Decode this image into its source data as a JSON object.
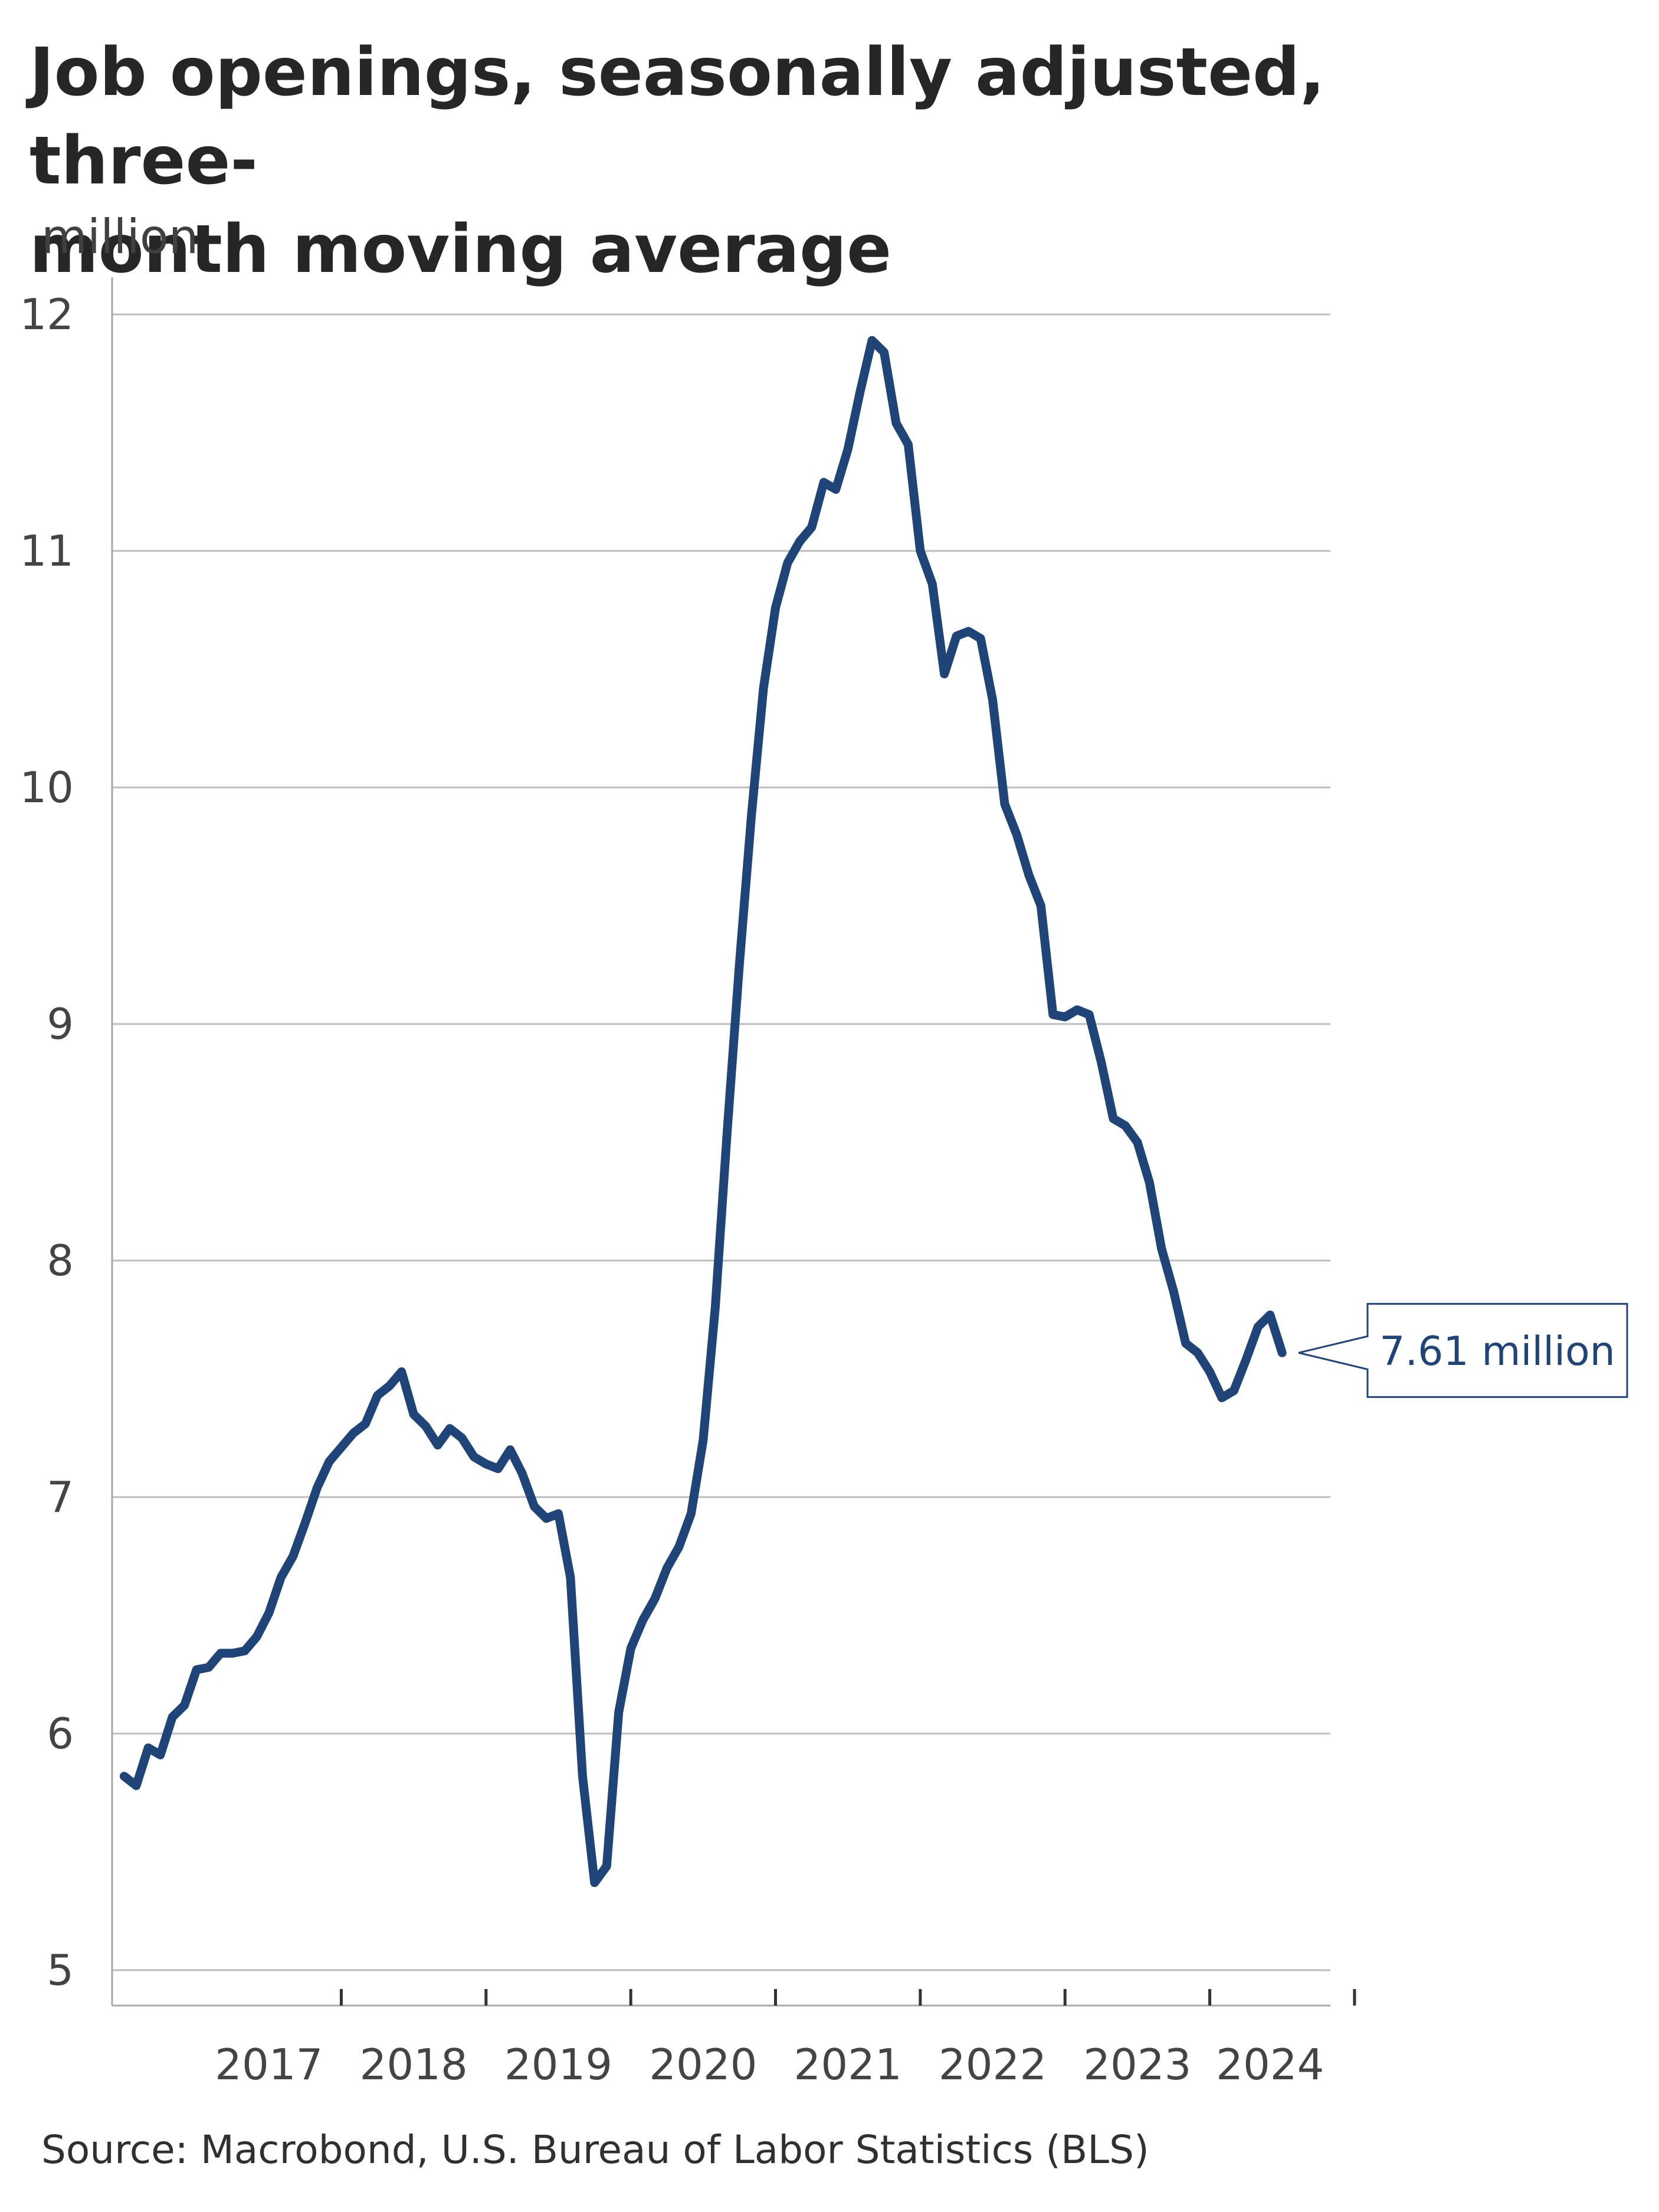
{
  "chart_data": {
    "type": "line",
    "title_lines": [
      "Job openings, seasonally adjusted, three-",
      "month moving average"
    ],
    "unit_label": "million",
    "source": "Source: Macrobond, U.S. Bureau of Labor Statistics (BLS)",
    "ylim": [
      5,
      12
    ],
    "yticks": [
      5,
      6,
      7,
      8,
      9,
      10,
      11,
      12
    ],
    "xlim": [
      "2016-06",
      "2024-11"
    ],
    "year_labels": [
      "2017",
      "2018",
      "2019",
      "2020",
      "2021",
      "2022",
      "2023",
      "2024"
    ],
    "grid": true,
    "series": [
      {
        "color": "#1f4478",
        "values": [
          [
            "2016-07",
            5.82
          ],
          [
            "2016-08",
            5.78
          ],
          [
            "2016-09",
            5.94
          ],
          [
            "2016-10",
            5.91
          ],
          [
            "2016-11",
            6.07
          ],
          [
            "2016-12",
            6.12
          ],
          [
            "2017-01",
            6.27
          ],
          [
            "2017-02",
            6.28
          ],
          [
            "2017-03",
            6.34
          ],
          [
            "2017-04",
            6.34
          ],
          [
            "2017-05",
            6.35
          ],
          [
            "2017-06",
            6.41
          ],
          [
            "2017-07",
            6.51
          ],
          [
            "2017-08",
            6.66
          ],
          [
            "2017-09",
            6.75
          ],
          [
            "2017-10",
            6.89
          ],
          [
            "2017-11",
            7.04
          ],
          [
            "2017-12",
            7.15
          ],
          [
            "2018-01",
            7.21
          ],
          [
            "2018-02",
            7.27
          ],
          [
            "2018-03",
            7.31
          ],
          [
            "2018-04",
            7.43
          ],
          [
            "2018-05",
            7.47
          ],
          [
            "2018-06",
            7.53
          ],
          [
            "2018-07",
            7.35
          ],
          [
            "2018-08",
            7.3
          ],
          [
            "2018-09",
            7.22
          ],
          [
            "2018-10",
            7.29
          ],
          [
            "2018-11",
            7.25
          ],
          [
            "2018-12",
            7.17
          ],
          [
            "2019-01",
            7.14
          ],
          [
            "2019-02",
            7.12
          ],
          [
            "2019-03",
            7.2
          ],
          [
            "2019-04",
            7.1
          ],
          [
            "2019-05",
            6.96
          ],
          [
            "2019-06",
            6.91
          ],
          [
            "2019-07",
            6.93
          ],
          [
            "2019-08",
            6.66
          ],
          [
            "2019-09",
            5.82
          ],
          [
            "2019-10",
            5.37
          ],
          [
            "2019-11",
            5.44
          ],
          [
            "2019-12",
            6.09
          ],
          [
            "2020-01",
            6.36
          ],
          [
            "2020-02",
            6.48
          ],
          [
            "2020-03",
            6.57
          ],
          [
            "2020-04",
            6.7
          ],
          [
            "2020-05",
            6.79
          ],
          [
            "2020-06",
            6.93
          ],
          [
            "2020-07",
            7.24
          ],
          [
            "2020-08",
            7.8
          ],
          [
            "2020-09",
            8.55
          ],
          [
            "2020-10",
            9.25
          ],
          [
            "2020-11",
            9.88
          ],
          [
            "2020-12",
            10.42
          ],
          [
            "2021-01",
            10.76
          ],
          [
            "2021-02",
            10.95
          ],
          [
            "2021-03",
            11.04
          ],
          [
            "2021-04",
            11.1
          ],
          [
            "2021-05",
            11.29
          ],
          [
            "2021-06",
            11.26
          ],
          [
            "2021-07",
            11.43
          ],
          [
            "2021-08",
            11.67
          ],
          [
            "2021-09",
            11.89
          ],
          [
            "2021-10",
            11.84
          ],
          [
            "2021-11",
            11.54
          ],
          [
            "2021-12",
            11.45
          ],
          [
            "2022-01",
            11.0
          ],
          [
            "2022-02",
            10.86
          ],
          [
            "2022-03",
            10.48
          ],
          [
            "2022-04",
            10.64
          ],
          [
            "2022-05",
            10.66
          ],
          [
            "2022-06",
            10.63
          ],
          [
            "2022-07",
            10.37
          ],
          [
            "2022-08",
            9.93
          ],
          [
            "2022-09",
            9.8
          ],
          [
            "2022-10",
            9.63
          ],
          [
            "2022-11",
            9.5
          ],
          [
            "2022-12",
            9.04
          ],
          [
            "2023-01",
            9.03
          ],
          [
            "2023-02",
            9.06
          ],
          [
            "2023-03",
            9.04
          ],
          [
            "2023-04",
            8.84
          ],
          [
            "2023-05",
            8.6
          ],
          [
            "2023-06",
            8.57
          ],
          [
            "2023-07",
            8.5
          ],
          [
            "2023-08",
            8.33
          ],
          [
            "2023-09",
            8.05
          ],
          [
            "2023-10",
            7.87
          ],
          [
            "2023-11",
            7.65
          ],
          [
            "2023-12",
            7.61
          ],
          [
            "2024-01",
            7.53
          ],
          [
            "2024-02",
            7.42
          ],
          [
            "2024-03",
            7.45
          ],
          [
            "2024-04",
            7.58
          ],
          [
            "2024-05",
            7.72
          ],
          [
            "2024-06",
            7.77
          ],
          [
            "2024-07",
            7.61
          ]
        ]
      }
    ],
    "annotations": [
      {
        "text": "7.61 million",
        "at": [
          "2024-07",
          7.61
        ]
      }
    ]
  }
}
